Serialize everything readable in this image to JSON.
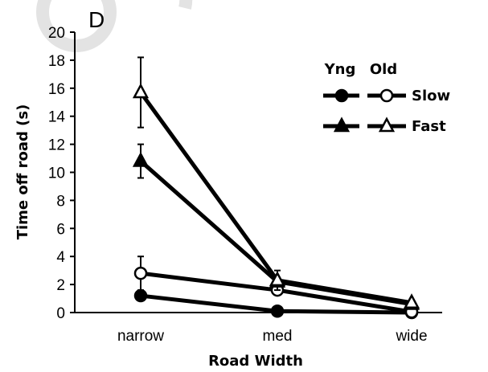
{
  "chart_data": {
    "type": "line",
    "panel_label": "D",
    "xlabel": "Road Width",
    "ylabel": "Time off road (s)",
    "categories": [
      "narrow",
      "med",
      "wide"
    ],
    "ylim": [
      0,
      20
    ],
    "yticks": [
      "0",
      "2",
      "4",
      "6",
      "8",
      "10",
      "12",
      "14",
      "16",
      "18",
      "20"
    ],
    "legend": {
      "col_headers": [
        "Yng",
        "Old"
      ],
      "rows": [
        "Slow",
        "Fast"
      ],
      "placement": "top-right"
    },
    "series": [
      {
        "group": "Yng",
        "condition": "Slow",
        "marker": "circle-filled",
        "values": [
          1.2,
          0.1,
          0.0
        ],
        "err": [
          0,
          0,
          0
        ]
      },
      {
        "group": "Old",
        "condition": "Slow",
        "marker": "circle-open",
        "values": [
          2.8,
          1.6,
          0.05
        ],
        "err": [
          1.2,
          0,
          0
        ]
      },
      {
        "group": "Yng",
        "condition": "Fast",
        "marker": "triangle-filled",
        "values": [
          10.8,
          2.2,
          0.6
        ],
        "err": [
          1.2,
          0,
          0
        ]
      },
      {
        "group": "Old",
        "condition": "Fast",
        "marker": "triangle-open",
        "values": [
          15.7,
          2.3,
          0.7
        ],
        "err": [
          2.5,
          0.7,
          0
        ]
      }
    ],
    "colors": {
      "line": "#000000",
      "watermark": "#e3e3e3"
    }
  }
}
